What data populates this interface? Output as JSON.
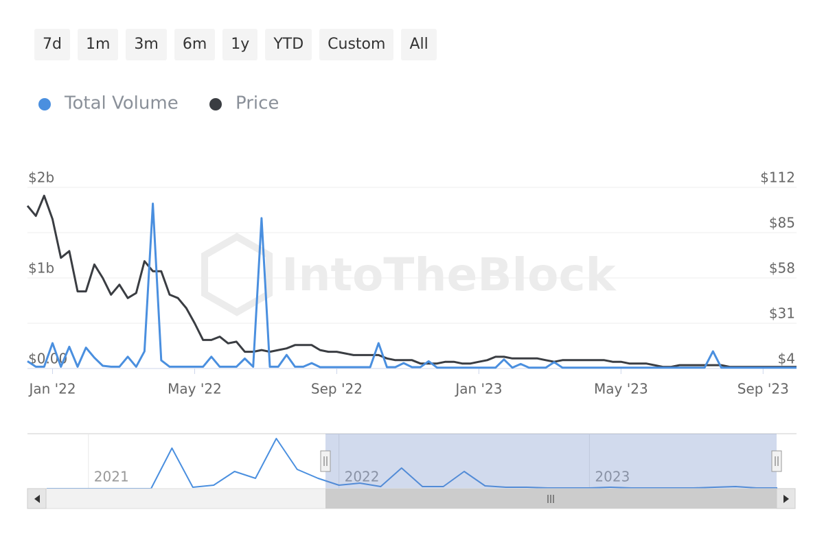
{
  "range_buttons": [
    "7d",
    "1m",
    "3m",
    "6m",
    "1y",
    "YTD",
    "Custom",
    "All"
  ],
  "chart_data": [
    {
      "type": "line",
      "watermark": "IntoTheBlock",
      "grid": true,
      "categories": [
        null,
        null,
        null,
        "Jan '22",
        null,
        null,
        null,
        null,
        null,
        null,
        null,
        null,
        null,
        null,
        null,
        null,
        null,
        null,
        null,
        null,
        "May '22",
        null,
        null,
        null,
        null,
        null,
        null,
        null,
        null,
        null,
        null,
        null,
        null,
        null,
        null,
        null,
        null,
        "Sep '22",
        null,
        null,
        null,
        null,
        null,
        null,
        null,
        null,
        null,
        null,
        null,
        null,
        null,
        null,
        null,
        null,
        "Jan '23",
        null,
        null,
        null,
        null,
        null,
        null,
        null,
        null,
        null,
        null,
        null,
        null,
        null,
        null,
        null,
        null,
        "May '23",
        null,
        null,
        null,
        null,
        null,
        null,
        null,
        null,
        null,
        null,
        null,
        null,
        null,
        null,
        null,
        null,
        "Sep '23",
        null,
        null,
        null,
        null
      ],
      "series": [
        {
          "name": "Total Volume",
          "color": "#4a8fdf",
          "values": [
            80000000,
            20000000,
            20000000,
            280000000,
            20000000,
            240000000,
            20000000,
            230000000,
            120000000,
            30000000,
            20000000,
            20000000,
            130000000,
            20000000,
            190000000,
            1820000000,
            90000000,
            20000000,
            20000000,
            20000000,
            20000000,
            20000000,
            130000000,
            20000000,
            20000000,
            20000000,
            110000000,
            20000000,
            1660000000,
            20000000,
            20000000,
            150000000,
            20000000,
            20000000,
            60000000,
            15000000,
            15000000,
            15000000,
            15000000,
            15000000,
            15000000,
            15000000,
            280000000,
            15000000,
            15000000,
            60000000,
            15000000,
            15000000,
            80000000,
            10000000,
            10000000,
            10000000,
            10000000,
            10000000,
            10000000,
            10000000,
            10000000,
            100000000,
            10000000,
            50000000,
            10000000,
            10000000,
            10000000,
            70000000,
            10000000,
            10000000,
            10000000,
            10000000,
            10000000,
            10000000,
            10000000,
            10000000,
            10000000,
            10000000,
            10000000,
            10000000,
            10000000,
            10000000,
            10000000,
            10000000,
            10000000,
            10000000,
            190000000,
            10000000,
            10000000,
            10000000,
            10000000,
            10000000,
            10000000,
            10000000,
            10000000,
            10000000,
            10000000
          ]
        },
        {
          "name": "Price",
          "color": "#3a3d42",
          "axis": "y2",
          "values": [
            101,
            95,
            107,
            93,
            70,
            74,
            50,
            50,
            66,
            58,
            48,
            54,
            46,
            49,
            68,
            62,
            62,
            48,
            46,
            40,
            31,
            21,
            21,
            23,
            19,
            20,
            14,
            14,
            15,
            14,
            15,
            16,
            18,
            18,
            18,
            15,
            14,
            14,
            13,
            12,
            12,
            12,
            12,
            10,
            9,
            9,
            9,
            7,
            7,
            7,
            8,
            8,
            7,
            7,
            8,
            9,
            11,
            11,
            10,
            10,
            10,
            10,
            9,
            8,
            9,
            9,
            9,
            9,
            9,
            9,
            8,
            8,
            7,
            7,
            7,
            6,
            5,
            5,
            6,
            6,
            6,
            6,
            6,
            6,
            5,
            5,
            5,
            5,
            5,
            5,
            5,
            5,
            5
          ]
        }
      ],
      "ylim": [
        0,
        2000000000
      ],
      "yticks": [
        {
          "value": 0,
          "label": "$0.00"
        },
        {
          "value": 1000000000,
          "label": "$1b"
        },
        {
          "value": 2000000000,
          "label": "$2b"
        }
      ],
      "y2lim": [
        4,
        112
      ],
      "y2ticks": [
        {
          "value": 4,
          "label": "$4"
        },
        {
          "value": 31,
          "label": "$31"
        },
        {
          "value": 58,
          "label": "$58"
        },
        {
          "value": 85,
          "label": "$85"
        },
        {
          "value": 112,
          "label": "$112"
        }
      ]
    },
    {
      "type": "line",
      "color": "#4a8fdf",
      "categories": [
        null,
        null,
        "2021",
        null,
        null,
        null,
        null,
        null,
        null,
        null,
        null,
        null,
        null,
        null,
        "2022",
        null,
        null,
        null,
        null,
        null,
        null,
        null,
        null,
        null,
        null,
        null,
        "2023",
        null,
        null,
        null,
        null,
        null,
        null,
        null,
        null,
        null
      ],
      "values": [
        0,
        0,
        0,
        0,
        0,
        0,
        59,
        2,
        5,
        25,
        15,
        73,
        28,
        15,
        5,
        8,
        3,
        30,
        3,
        3,
        25,
        4,
        2,
        2,
        1,
        1,
        1,
        2,
        1,
        1,
        1,
        1,
        2,
        3,
        1,
        1
      ],
      "ylim": [
        0,
        80
      ]
    }
  ]
}
